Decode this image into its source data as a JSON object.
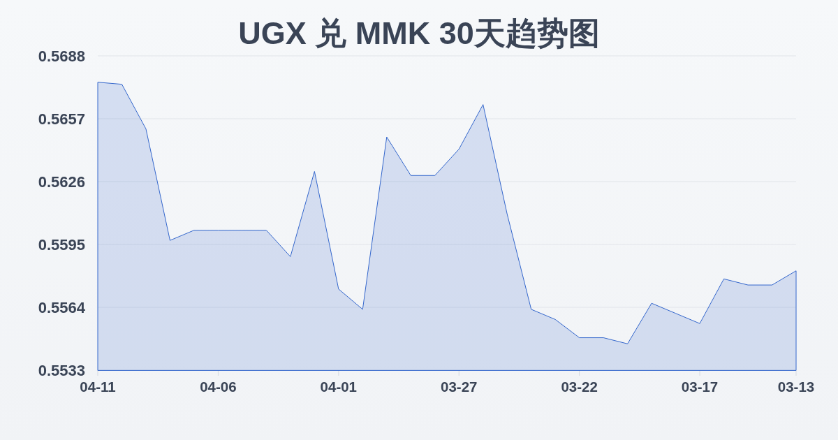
{
  "chart_data": {
    "type": "area",
    "title": "UGX 兑 MMK 30天趋势图",
    "categories": [
      "04-11",
      null,
      null,
      null,
      null,
      "04-06",
      null,
      null,
      null,
      null,
      "04-01",
      null,
      null,
      null,
      null,
      "03-27",
      null,
      null,
      null,
      null,
      "03-22",
      null,
      null,
      null,
      null,
      "03-17",
      null,
      null,
      null,
      "03-13"
    ],
    "values": [
      0.5675,
      0.5674,
      0.5652,
      0.5597,
      0.5602,
      0.5602,
      0.5602,
      0.5602,
      0.5589,
      0.5631,
      0.5573,
      0.5563,
      0.5648,
      0.5629,
      0.5629,
      0.5642,
      0.5664,
      0.561,
      0.5563,
      0.5558,
      0.5549,
      0.5549,
      0.5546,
      0.5566,
      0.5561,
      0.5556,
      0.5578,
      0.5575,
      0.5575,
      0.5582
    ],
    "color": "#3366cc",
    "ylim": [
      0.5533,
      0.5688
    ],
    "yticks": [
      0.5533,
      0.5564,
      0.5595,
      0.5626,
      0.5657,
      0.5688
    ],
    "grid": "y"
  }
}
